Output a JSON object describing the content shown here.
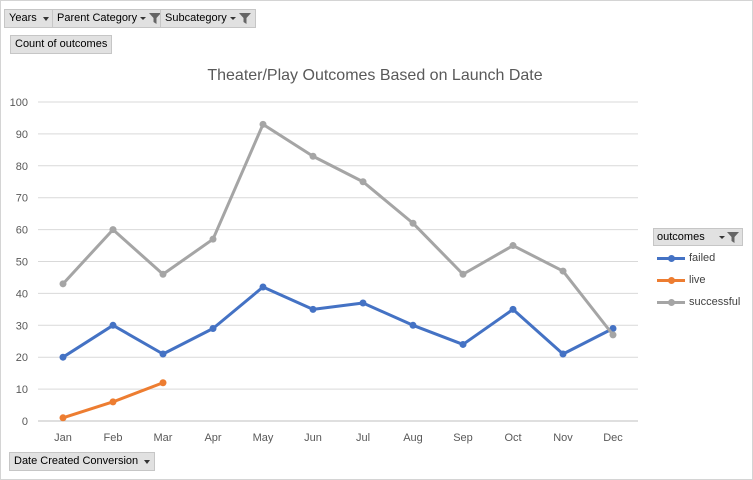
{
  "filters": {
    "years_label": "Years",
    "parent_category_label": "Parent Category",
    "subcategory_label": "Subcategory"
  },
  "value_field_label": "Count of outcomes",
  "axis_field_label": "Date Created Conversion",
  "legend_title": "outcomes",
  "colors": {
    "failed": "#4472c4",
    "live": "#ed7d31",
    "successful": "#a5a5a5",
    "grid": "#d9d9d9",
    "button_bg": "#e1e1e1"
  },
  "icons": [
    "dropdown-caret-icon",
    "filter-funnel-icon"
  ],
  "chart_data": {
    "type": "line",
    "title": "Theater/Play Outcomes Based on Launch Date",
    "xlabel": "",
    "ylabel": "",
    "ylim": [
      0,
      100
    ],
    "yticks": [
      0,
      10,
      20,
      30,
      40,
      50,
      60,
      70,
      80,
      90,
      100
    ],
    "grid": true,
    "legend_position": "right",
    "categories": [
      "Jan",
      "Feb",
      "Mar",
      "Apr",
      "May",
      "Jun",
      "Jul",
      "Aug",
      "Sep",
      "Oct",
      "Nov",
      "Dec"
    ],
    "series": [
      {
        "name": "failed",
        "values": [
          20,
          30,
          21,
          29,
          42,
          35,
          37,
          30,
          24,
          35,
          21,
          29
        ]
      },
      {
        "name": "live",
        "values": [
          1,
          6,
          12,
          null,
          null,
          null,
          null,
          null,
          null,
          null,
          null,
          null
        ]
      },
      {
        "name": "successful",
        "values": [
          43,
          60,
          46,
          57,
          93,
          83,
          75,
          62,
          46,
          55,
          47,
          27
        ]
      }
    ]
  }
}
